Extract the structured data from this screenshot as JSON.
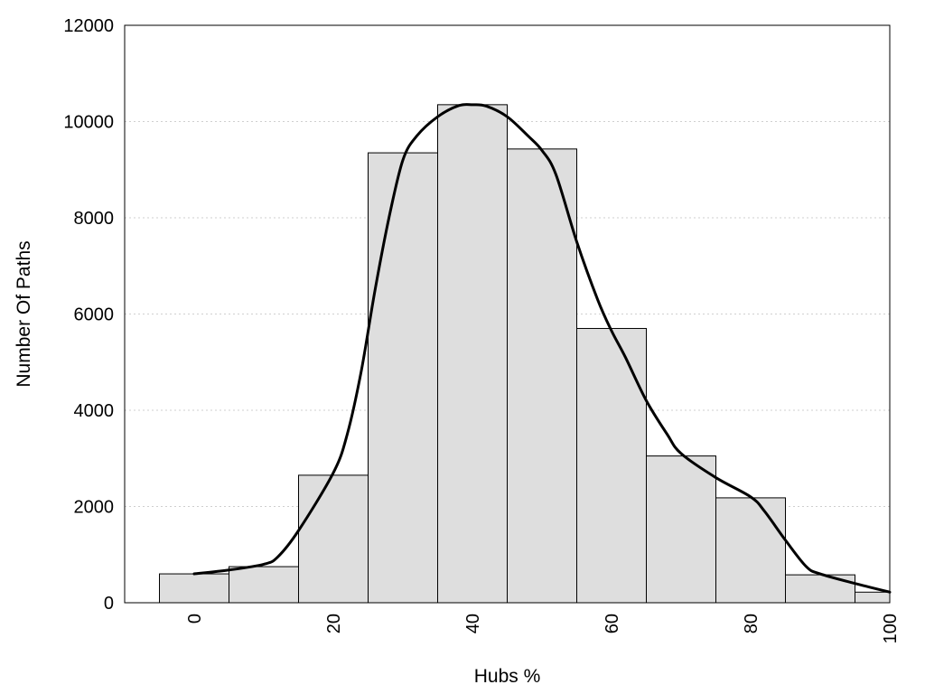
{
  "chart_data": {
    "type": "bar",
    "title": "",
    "xlabel": "Hubs %",
    "ylabel": "Number Of Paths",
    "xlim": [
      -10,
      100
    ],
    "ylim": [
      0,
      12000
    ],
    "x_ticks": [
      "0",
      "20",
      "40",
      "60",
      "80",
      "100"
    ],
    "y_ticks": [
      "0",
      "2000",
      "4000",
      "6000",
      "8000",
      "10000",
      "12000"
    ],
    "grid": "horizontal dotted",
    "bin_width": 10,
    "bins": [
      {
        "center": 0,
        "value": 600
      },
      {
        "center": 10,
        "value": 750
      },
      {
        "center": 20,
        "value": 2650
      },
      {
        "center": 30,
        "value": 9350
      },
      {
        "center": 40,
        "value": 10350
      },
      {
        "center": 50,
        "value": 9430
      },
      {
        "center": 60,
        "value": 5700
      },
      {
        "center": 70,
        "value": 3050
      },
      {
        "center": 80,
        "value": 2180
      },
      {
        "center": 90,
        "value": 580
      },
      {
        "center": 100,
        "value": 220
      }
    ],
    "density_curve": {
      "x": [
        0,
        5,
        10,
        12,
        15,
        20,
        22,
        24,
        26,
        28,
        30,
        32,
        35,
        38,
        40,
        42,
        45,
        48,
        50,
        52,
        55,
        58,
        60,
        62,
        65,
        68,
        70,
        75,
        80,
        82,
        85,
        88,
        90,
        95,
        100
      ],
      "y": [
        600,
        680,
        800,
        950,
        1500,
        2700,
        3500,
        4800,
        6500,
        8000,
        9200,
        9700,
        10100,
        10330,
        10350,
        10320,
        10100,
        9700,
        9400,
        8900,
        7500,
        6300,
        5650,
        5100,
        4200,
        3500,
        3100,
        2600,
        2200,
        1900,
        1300,
        750,
        600,
        400,
        220
      ]
    },
    "colors": {
      "bar_fill": "#dedede",
      "bar_edge": "#000000",
      "curve": "#000000"
    }
  }
}
